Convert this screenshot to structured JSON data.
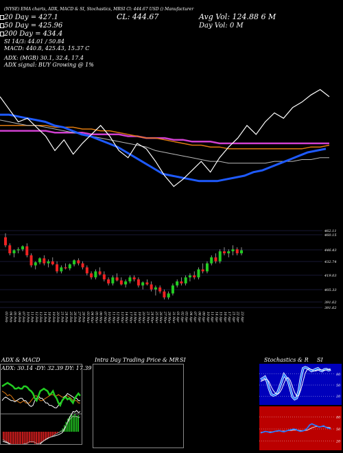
{
  "header": {
    "top_label": "(NYSE) EMA charts, ADX, MACD & SI, Stochastics, MRSI Cl: 444.67 USD  () Manufacturer",
    "ema20": "20 Day = 427.1",
    "ema50": "50 Day = 425.96",
    "ema200": "200 Day = 434.4",
    "cl": "CL: 444.67",
    "avg_vol": "Avg Vol: 124.88    6  M",
    "day_vol": "Day Vol: 0   M",
    "si_line": "SI 14/3: 44.01 / 50.84",
    "macd_line": "MACD: 440.8, 425.43, 15.37 C",
    "adx_line": "ADX:           (MGB) 30.1, 32.4, 17.4",
    "adx_signal": "ADX signal:           BUY Growing @ 1%"
  },
  "panels": {
    "adx_title": "ADX & MACD",
    "adx_values": "ADX: 30.14 -DY: 32.39 DY: 17.39",
    "intraday_title": "Intra Day Trading Price & MR",
    "intraday_si": "SI",
    "stoch_title": "Stochastics & R",
    "stoch_si": "SI"
  },
  "colors": {
    "ema_fast": "#1e5aff",
    "ema_orange": "#e07a10",
    "ema_magenta": "#d040d0",
    "up": "#22cc22",
    "down": "#ee2222"
  },
  "chart_data": [
    {
      "type": "line",
      "name": "ema-panel",
      "series": [
        {
          "key": "price",
          "values": [
            462,
            455,
            448,
            450,
            445,
            440,
            432,
            438,
            430,
            436,
            441,
            446,
            440,
            432,
            428,
            436,
            433,
            426,
            418,
            412,
            416,
            421,
            426,
            420,
            428,
            434,
            439,
            446,
            441,
            448,
            453,
            450,
            456,
            459,
            463,
            466,
            462
          ]
        },
        {
          "key": "ema_fast",
          "values": [
            452,
            452,
            451,
            450,
            449,
            448,
            446,
            445,
            443,
            441,
            440,
            438,
            436,
            434,
            431,
            428,
            425,
            422,
            419,
            418,
            417,
            416,
            415,
            415,
            415,
            416,
            417,
            418,
            420,
            421,
            423,
            425,
            427,
            429,
            431,
            432,
            433
          ]
        },
        {
          "key": "ema_mid",
          "values": [
            449,
            448,
            447,
            446,
            446,
            445,
            444,
            443,
            442,
            441,
            440,
            439,
            438,
            437,
            436,
            435,
            434,
            432,
            431,
            430,
            429,
            428,
            427,
            426,
            426,
            425,
            425,
            425,
            425,
            425,
            426,
            426,
            426,
            427,
            427,
            428,
            428
          ]
        },
        {
          "key": "ema_orange",
          "values": [
            446,
            446,
            446,
            446,
            446,
            446,
            445,
            445,
            445,
            444,
            444,
            443,
            443,
            442,
            441,
            440,
            439,
            439,
            438,
            437,
            436,
            435,
            435,
            434,
            434,
            433,
            433,
            433,
            433,
            433,
            433,
            433,
            433,
            433,
            434,
            434,
            435
          ]
        },
        {
          "key": "ema_magenta",
          "values": [
            443,
            443,
            443,
            443,
            443,
            443,
            442,
            442,
            442,
            442,
            441,
            441,
            441,
            441,
            440,
            440,
            439,
            439,
            439,
            438,
            438,
            437,
            437,
            437,
            436,
            436,
            436,
            436,
            436,
            436,
            436,
            436,
            436,
            436,
            436,
            436,
            436
          ]
        }
      ]
    },
    {
      "type": "candlestick",
      "name": "price-panel",
      "y_ticks": [
        "462.11",
        "460.15",
        "446.43",
        "432.74",
        "419.03",
        "405.33",
        "391.62",
        "391.62"
      ],
      "x_labels": [
        "03 Feb",
        "04 Feb",
        "05 Feb",
        "06 Feb",
        "07 Feb",
        "10 Feb",
        "11 Feb",
        "12 Feb",
        "13 Feb",
        "14 Feb",
        "18 Feb",
        "19 Feb",
        "20 Feb",
        "21 Feb",
        "24 Feb",
        "25 Feb",
        "26 Feb",
        "27 Feb",
        "28 Feb",
        "03 Mar",
        "04 Mar",
        "05 Mar",
        "06 Mar",
        "07 Mar",
        "10 Mar",
        "11 Mar",
        "12 Mar",
        "13 Mar",
        "14 Mar",
        "17 Mar",
        "18 Mar",
        "19 Mar",
        "20 Mar",
        "21 Mar",
        "24 Mar",
        "25 Mar",
        "26 Mar",
        "27 Mar",
        "28 Mar",
        "31 Mar",
        "01 Apr",
        "02 Apr",
        "03 Apr",
        "04 Apr",
        "07 Apr",
        "08 Apr",
        "09 Apr",
        "10 Apr",
        "11 Apr",
        "14 Apr",
        "15 Apr",
        "16 Apr",
        "17 Apr",
        "21 Apr",
        "22 Apr",
        "23 Apr"
      ],
      "ohlc": [
        [
          458,
          462,
          448,
          450
        ],
        [
          450,
          452,
          440,
          442
        ],
        [
          442,
          446,
          438,
          445
        ],
        [
          445,
          448,
          442,
          446
        ],
        [
          446,
          450,
          444,
          449
        ],
        [
          449,
          452,
          438,
          440
        ],
        [
          440,
          442,
          428,
          430
        ],
        [
          430,
          434,
          426,
          433
        ],
        [
          433,
          438,
          431,
          437
        ],
        [
          437,
          440,
          430,
          432
        ],
        [
          432,
          436,
          428,
          434
        ],
        [
          434,
          438,
          430,
          431
        ],
        [
          431,
          434,
          422,
          424
        ],
        [
          424,
          430,
          422,
          428
        ],
        [
          428,
          432,
          426,
          427
        ],
        [
          427,
          432,
          425,
          431
        ],
        [
          431,
          436,
          429,
          435
        ],
        [
          435,
          437,
          430,
          432
        ],
        [
          432,
          434,
          426,
          428
        ],
        [
          428,
          430,
          420,
          422
        ],
        [
          422,
          424,
          416,
          418
        ],
        [
          418,
          426,
          416,
          424
        ],
        [
          424,
          428,
          420,
          421
        ],
        [
          421,
          424,
          414,
          416
        ],
        [
          416,
          418,
          410,
          412
        ],
        [
          412,
          420,
          410,
          418
        ],
        [
          418,
          422,
          414,
          415
        ],
        [
          415,
          418,
          410,
          411
        ],
        [
          411,
          416,
          408,
          414
        ],
        [
          414,
          420,
          412,
          418
        ],
        [
          418,
          420,
          414,
          416
        ],
        [
          416,
          418,
          408,
          410
        ],
        [
          410,
          414,
          406,
          413
        ],
        [
          413,
          416,
          410,
          411
        ],
        [
          411,
          414,
          404,
          406
        ],
        [
          406,
          410,
          400,
          408
        ],
        [
          408,
          410,
          402,
          404
        ],
        [
          404,
          406,
          396,
          398
        ],
        [
          398,
          404,
          396,
          402
        ],
        [
          402,
          412,
          400,
          410
        ],
        [
          410,
          416,
          408,
          414
        ],
        [
          414,
          418,
          410,
          412
        ],
        [
          412,
          420,
          410,
          418
        ],
        [
          418,
          422,
          414,
          420
        ],
        [
          420,
          424,
          416,
          418
        ],
        [
          418,
          428,
          416,
          426
        ],
        [
          426,
          432,
          422,
          424
        ],
        [
          424,
          434,
          422,
          432
        ],
        [
          432,
          440,
          430,
          438
        ],
        [
          438,
          442,
          432,
          434
        ],
        [
          434,
          446,
          432,
          444
        ],
        [
          444,
          448,
          440,
          442
        ],
        [
          442,
          446,
          438,
          444
        ],
        [
          444,
          450,
          440,
          446
        ],
        [
          446,
          448,
          440,
          442
        ],
        [
          442,
          448,
          440,
          445
        ]
      ]
    },
    {
      "type": "line",
      "name": "adx-panel",
      "series": [
        {
          "key": "adx_green",
          "values": [
            52,
            53,
            54,
            55,
            54,
            53,
            52,
            50,
            50,
            51,
            50,
            50,
            52,
            52,
            51,
            49,
            48,
            46,
            42,
            40,
            44,
            48,
            49,
            50,
            49,
            48,
            45,
            46,
            48,
            44,
            42,
            38,
            36,
            40,
            42,
            43,
            41,
            42,
            40,
            38,
            42,
            44,
            46,
            44
          ]
        },
        {
          "key": "adx_orange",
          "values": [
            48,
            47,
            46,
            44,
            45,
            44,
            42,
            40,
            40,
            39,
            38,
            39,
            40,
            38,
            38,
            38,
            40,
            42,
            44,
            44,
            42,
            40,
            40,
            41,
            42,
            43,
            44,
            45,
            45,
            44,
            44,
            45,
            44,
            43,
            43,
            44,
            44,
            43,
            42,
            40,
            40,
            40,
            38,
            38
          ]
        },
        {
          "key": "adx_white",
          "values": [
            40,
            42,
            43,
            42,
            41,
            40,
            40,
            39,
            40,
            41,
            42,
            42,
            40,
            40,
            38,
            36,
            35,
            36,
            40,
            42,
            44,
            42,
            42,
            40,
            38,
            38,
            36,
            36,
            35,
            34,
            34,
            36,
            38,
            40,
            43,
            44,
            46,
            45,
            44,
            43,
            42,
            42,
            40,
            40
          ]
        }
      ]
    },
    {
      "type": "bar",
      "name": "macd-histogram",
      "values": [
        -8,
        -9,
        -10,
        -11,
        -12,
        -13,
        -14,
        -14,
        -15,
        -15,
        -14,
        -13,
        -12,
        -12,
        -11,
        -10,
        -10,
        -10,
        -11,
        -12,
        -12,
        -11,
        -10,
        -9,
        -8,
        -7,
        -6,
        -5,
        -4,
        -3,
        -2,
        -1,
        0,
        1,
        3,
        6,
        9,
        12,
        14,
        16,
        15,
        16,
        14,
        15
      ]
    },
    {
      "type": "line",
      "name": "stochastic-panel",
      "y_ticks": [
        "80",
        "50",
        "20"
      ],
      "series": [
        {
          "key": "stoch_k",
          "values": [
            65,
            68,
            72,
            60,
            40,
            25,
            22,
            24,
            30,
            45,
            62,
            78,
            70,
            60,
            40,
            18,
            12,
            15,
            35,
            70,
            95,
            98,
            96,
            92,
            88,
            90,
            93,
            95,
            90,
            88,
            92,
            93,
            90,
            92
          ]
        },
        {
          "key": "stoch_d",
          "values": [
            60,
            62,
            65,
            66,
            58,
            45,
            35,
            28,
            25,
            30,
            40,
            55,
            68,
            70,
            62,
            45,
            30,
            20,
            22,
            38,
            60,
            82,
            92,
            94,
            92,
            88,
            88,
            90,
            92,
            90,
            90,
            91,
            92,
            91
          ]
        }
      ]
    },
    {
      "type": "line",
      "name": "rsi-panel",
      "y_ticks": [
        "80",
        "50",
        "20"
      ],
      "series": [
        {
          "key": "rsi",
          "values": [
            40,
            42,
            44,
            43,
            41,
            42,
            44,
            45,
            46,
            44,
            43,
            45,
            47,
            48,
            50,
            49,
            46,
            44,
            45,
            47,
            52,
            60,
            63,
            60,
            58,
            55,
            56,
            58,
            54,
            52,
            50
          ]
        },
        {
          "key": "rsi_avg",
          "values": [
            42,
            42,
            43,
            43,
            43,
            43,
            44,
            44,
            45,
            45,
            45,
            45,
            46,
            46,
            47,
            47,
            47,
            46,
            46,
            46,
            47,
            50,
            53,
            55,
            56,
            56,
            56,
            56,
            55,
            54,
            53
          ]
        }
      ]
    }
  ]
}
